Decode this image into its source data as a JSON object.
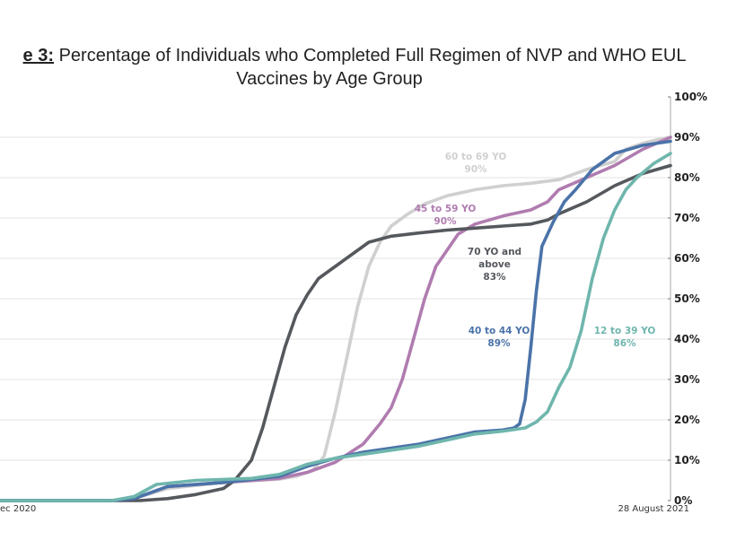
{
  "chart_data": {
    "type": "line",
    "title_prefix": "e 3:",
    "title_line1": " Percentage of Individuals who Completed Full Regimen of NVP and WHO EUL",
    "title_line2": "Vaccines by Age Group",
    "y_ticks": [
      "100%",
      "90%",
      "80%",
      "70%",
      "60%",
      "50%",
      "40%",
      "30%",
      "20%",
      "10%",
      "0%"
    ],
    "ylim": [
      0,
      100
    ],
    "x_start_label": "ec 2020",
    "x_end_label": "28 August 2021",
    "grid": true,
    "series": [
      {
        "name": "60 to 69 YO",
        "name_lines": [
          "60 to 69 YO"
        ],
        "value_label": "90%",
        "color": "#d0d0d0",
        "points": [
          [
            0,
            0
          ],
          [
            20,
            0
          ],
          [
            24,
            0.5
          ],
          [
            30,
            3
          ],
          [
            40,
            4.5
          ],
          [
            50,
            5.3
          ],
          [
            53,
            6
          ],
          [
            56,
            7.5
          ],
          [
            58,
            11
          ],
          [
            60,
            22
          ],
          [
            62,
            35
          ],
          [
            64,
            48
          ],
          [
            66,
            58
          ],
          [
            68,
            64
          ],
          [
            70,
            68
          ],
          [
            73,
            71
          ],
          [
            76,
            73.5
          ],
          [
            80,
            75.5
          ],
          [
            85,
            77
          ],
          [
            90,
            78
          ],
          [
            95,
            78.6
          ],
          [
            100,
            79.5
          ],
          [
            105,
            82
          ],
          [
            110,
            84
          ],
          [
            112,
            87
          ],
          [
            115,
            88.5
          ],
          [
            118,
            89.5
          ],
          [
            120,
            90
          ]
        ]
      },
      {
        "name": "45 to 59 YO",
        "name_lines": [
          "45 to 59 YO"
        ],
        "value_label": "90%",
        "color": "#b07cb0",
        "points": [
          [
            0,
            0
          ],
          [
            20,
            0
          ],
          [
            24,
            0.5
          ],
          [
            30,
            3.5
          ],
          [
            40,
            4.5
          ],
          [
            50,
            5.5
          ],
          [
            55,
            7
          ],
          [
            60,
            9.5
          ],
          [
            65,
            14
          ],
          [
            68,
            19
          ],
          [
            70,
            23
          ],
          [
            72,
            30
          ],
          [
            74,
            40
          ],
          [
            76,
            50
          ],
          [
            78,
            58
          ],
          [
            80,
            62
          ],
          [
            82,
            66
          ],
          [
            85,
            68.5
          ],
          [
            90,
            70.5
          ],
          [
            95,
            72
          ],
          [
            98,
            74
          ],
          [
            100,
            77
          ],
          [
            105,
            80
          ],
          [
            110,
            83
          ],
          [
            115,
            87
          ],
          [
            120,
            90
          ]
        ]
      },
      {
        "name": "70 YO and above",
        "name_lines": [
          "70 YO and",
          "above"
        ],
        "value_label": "83%",
        "color": "#55585d",
        "points": [
          [
            0,
            0
          ],
          [
            25,
            0
          ],
          [
            30,
            0.5
          ],
          [
            35,
            1.5
          ],
          [
            40,
            3
          ],
          [
            42,
            5
          ],
          [
            45,
            10
          ],
          [
            47,
            18
          ],
          [
            49,
            28
          ],
          [
            51,
            38
          ],
          [
            53,
            46
          ],
          [
            55,
            51
          ],
          [
            57,
            55
          ],
          [
            60,
            58
          ],
          [
            63,
            61
          ],
          [
            66,
            64
          ],
          [
            70,
            65.5
          ],
          [
            75,
            66.3
          ],
          [
            80,
            67
          ],
          [
            85,
            67.5
          ],
          [
            90,
            68
          ],
          [
            95,
            68.5
          ],
          [
            98,
            69.5
          ],
          [
            100,
            71
          ],
          [
            105,
            74
          ],
          [
            110,
            78
          ],
          [
            115,
            81
          ],
          [
            120,
            83
          ]
        ]
      },
      {
        "name": "40 to 44 YO",
        "name_lines": [
          "40 to 44 YO"
        ],
        "value_label": "89%",
        "color": "#4a73a8",
        "points": [
          [
            0,
            0
          ],
          [
            20,
            0
          ],
          [
            24,
            0.5
          ],
          [
            30,
            3.5
          ],
          [
            40,
            4.5
          ],
          [
            50,
            6
          ],
          [
            55,
            8.5
          ],
          [
            60,
            10.5
          ],
          [
            65,
            12
          ],
          [
            70,
            13
          ],
          [
            75,
            14
          ],
          [
            80,
            15.5
          ],
          [
            85,
            17
          ],
          [
            90,
            17.5
          ],
          [
            92,
            18
          ],
          [
            93,
            19
          ],
          [
            94,
            25
          ],
          [
            95,
            38
          ],
          [
            96,
            52
          ],
          [
            97,
            63
          ],
          [
            99,
            69
          ],
          [
            101,
            74
          ],
          [
            103,
            77
          ],
          [
            106,
            82
          ],
          [
            110,
            86
          ],
          [
            115,
            88
          ],
          [
            120,
            89
          ]
        ]
      },
      {
        "name": "12 to 39 YO",
        "name_lines": [
          "12 to 39 YO"
        ],
        "value_label": "86%",
        "color": "#6fb6ad",
        "points": [
          [
            0,
            0
          ],
          [
            20,
            0
          ],
          [
            24,
            1
          ],
          [
            28,
            4
          ],
          [
            35,
            5
          ],
          [
            45,
            5.5
          ],
          [
            50,
            6.5
          ],
          [
            55,
            9
          ],
          [
            60,
            10.5
          ],
          [
            65,
            11.5
          ],
          [
            70,
            12.5
          ],
          [
            75,
            13.5
          ],
          [
            80,
            15
          ],
          [
            85,
            16.5
          ],
          [
            90,
            17.2
          ],
          [
            94,
            18
          ],
          [
            96,
            19.5
          ],
          [
            98,
            22
          ],
          [
            100,
            28
          ],
          [
            102,
            33
          ],
          [
            104,
            42
          ],
          [
            106,
            55
          ],
          [
            108,
            65
          ],
          [
            110,
            72
          ],
          [
            112,
            77
          ],
          [
            114,
            80
          ],
          [
            117,
            83.5
          ],
          [
            120,
            86
          ]
        ]
      }
    ]
  }
}
